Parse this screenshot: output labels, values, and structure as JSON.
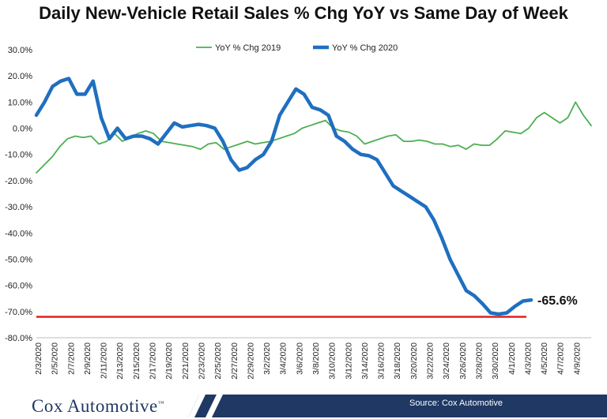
{
  "title": "Daily New-Vehicle Retail Sales % Chg YoY vs Same Day of Week",
  "brand": {
    "name": "Cox Automotive",
    "mark": "™"
  },
  "source": "Source: Cox Automotive",
  "colors": {
    "series2019": "#4caf50",
    "series2020": "#1f6fc0",
    "baseline": "#e02020",
    "brand": "#1f3864"
  },
  "chart_data": {
    "type": "line",
    "title": "Daily New-Vehicle Retail Sales % Chg YoY vs Same Day of Week",
    "xlabel": "",
    "ylabel": "",
    "ylim": [
      -80,
      30
    ],
    "y_ticks": [
      30,
      20,
      10,
      0,
      -10,
      -20,
      -30,
      -40,
      -50,
      -60,
      -70,
      -80
    ],
    "y_tick_labels": [
      "30.0%",
      "20.0%",
      "10.0%",
      "0.0%",
      "-10.0%",
      "-20.0%",
      "-30.0%",
      "-40.0%",
      "-50.0%",
      "-60.0%",
      "-70.0%",
      "-80.0%"
    ],
    "x_tick_labels": [
      "2/3/2020",
      "2/5/2020",
      "2/7/2020",
      "2/9/2020",
      "2/11/2020",
      "2/13/2020",
      "2/15/2020",
      "2/17/2020",
      "2/19/2020",
      "2/21/2020",
      "2/23/2020",
      "2/25/2020",
      "2/27/2020",
      "2/29/2020",
      "3/2/2020",
      "3/4/2020",
      "3/6/2020",
      "3/8/2020",
      "3/10/2020",
      "3/12/2020",
      "3/14/2020",
      "3/16/2020",
      "3/18/2020",
      "3/20/2020",
      "3/22/2020",
      "3/24/2020",
      "3/26/2020",
      "3/28/2020",
      "3/30/2020",
      "4/1/2020",
      "4/3/2020",
      "4/5/2020",
      "4/7/2020",
      "4/9/2020"
    ],
    "legend_position": "top-center",
    "series": [
      {
        "name": "YoY % Chg 2019",
        "values": [
          -17,
          -14,
          -11,
          -7,
          -4,
          -3,
          -3.5,
          -3,
          -6,
          -5,
          -2,
          -5,
          -3.5,
          -2,
          -1,
          -2,
          -5,
          -5.5,
          -6,
          -6.5,
          -7,
          -8,
          -6,
          -5.5,
          -8,
          -7,
          -6,
          -5,
          -6,
          -5.5,
          -5,
          -4,
          -3,
          -2,
          0,
          1,
          2,
          3,
          0,
          -1,
          -1.5,
          -3,
          -6,
          -5,
          -4,
          -3,
          -2.5,
          -5,
          -5,
          -4.5,
          -5,
          -6,
          -6,
          -7,
          -6.5,
          -8,
          -6,
          -6.5,
          -6.5,
          -4,
          -1,
          -1.5,
          -2,
          0,
          4,
          6,
          4,
          2,
          4,
          10,
          5,
          1
        ]
      },
      {
        "name": "YoY % Chg 2020",
        "values": [
          5,
          10,
          16,
          18,
          19,
          13,
          13,
          18,
          4,
          -4,
          0,
          -4,
          -3,
          -3,
          -4,
          -6,
          -2,
          2,
          0.5,
          1,
          1.5,
          1,
          0,
          -5,
          -12,
          -16,
          -15,
          -12,
          -10,
          -5,
          5,
          10,
          15,
          13,
          8,
          7,
          5,
          -3,
          -5,
          -8,
          -10,
          -10.5,
          -12,
          -17,
          -22,
          -24,
          -26,
          -28,
          -30,
          -35,
          -42,
          -50,
          -56,
          -62,
          -64,
          -67,
          -70.5,
          -71,
          -70.5,
          -68,
          -66,
          -65.6
        ]
      }
    ],
    "baseline": {
      "value": -72
    },
    "annotations": [
      {
        "label": "-65.6%",
        "series": "YoY % Chg 2020",
        "point": "last"
      }
    ]
  }
}
